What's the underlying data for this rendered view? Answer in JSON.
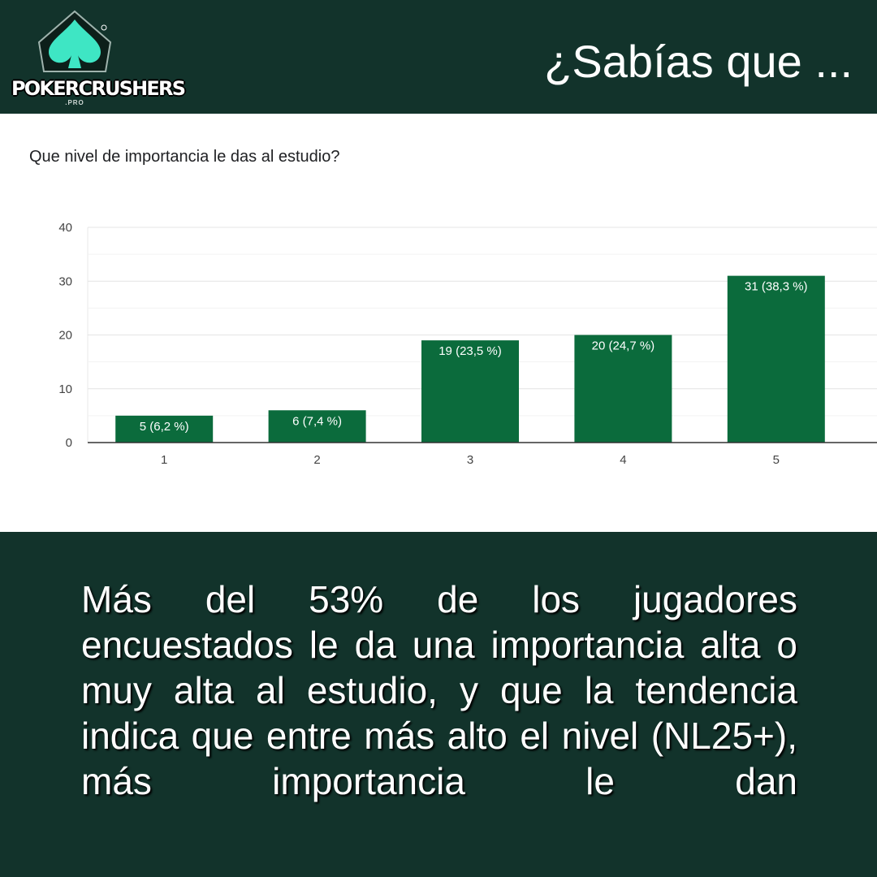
{
  "header": {
    "logo_wordmark": "POKERCRUSHERS",
    "logo_sub": ".PRO",
    "logo_mark": "®",
    "headline": "¿Sabías que ..."
  },
  "colors": {
    "background": "#12332b",
    "bar": "#0b6b3c",
    "logo_accent": "#3ee6c4"
  },
  "chart_data": {
    "type": "bar",
    "title": "Que nivel de importancia le das al estudio?",
    "xlabel": "",
    "ylabel": "",
    "categories": [
      "1",
      "2",
      "3",
      "4",
      "5"
    ],
    "values": [
      5,
      6,
      19,
      20,
      31
    ],
    "data_labels": [
      "5 (6,2 %)",
      "6 (7,4 %)",
      "19 (23,5 %)",
      "20 (24,7 %)",
      "31 (38,3 %)"
    ],
    "ylim": [
      0,
      40
    ],
    "yticks": [
      0,
      10,
      20,
      30,
      40
    ],
    "grid": true,
    "legend": "none"
  },
  "body_text": "Más del 53% de los jugadores encuestados le da una importancia alta o muy alta al estudio, y que la tendencia indica que entre más alto el nivel (NL25+), más importancia le dan"
}
